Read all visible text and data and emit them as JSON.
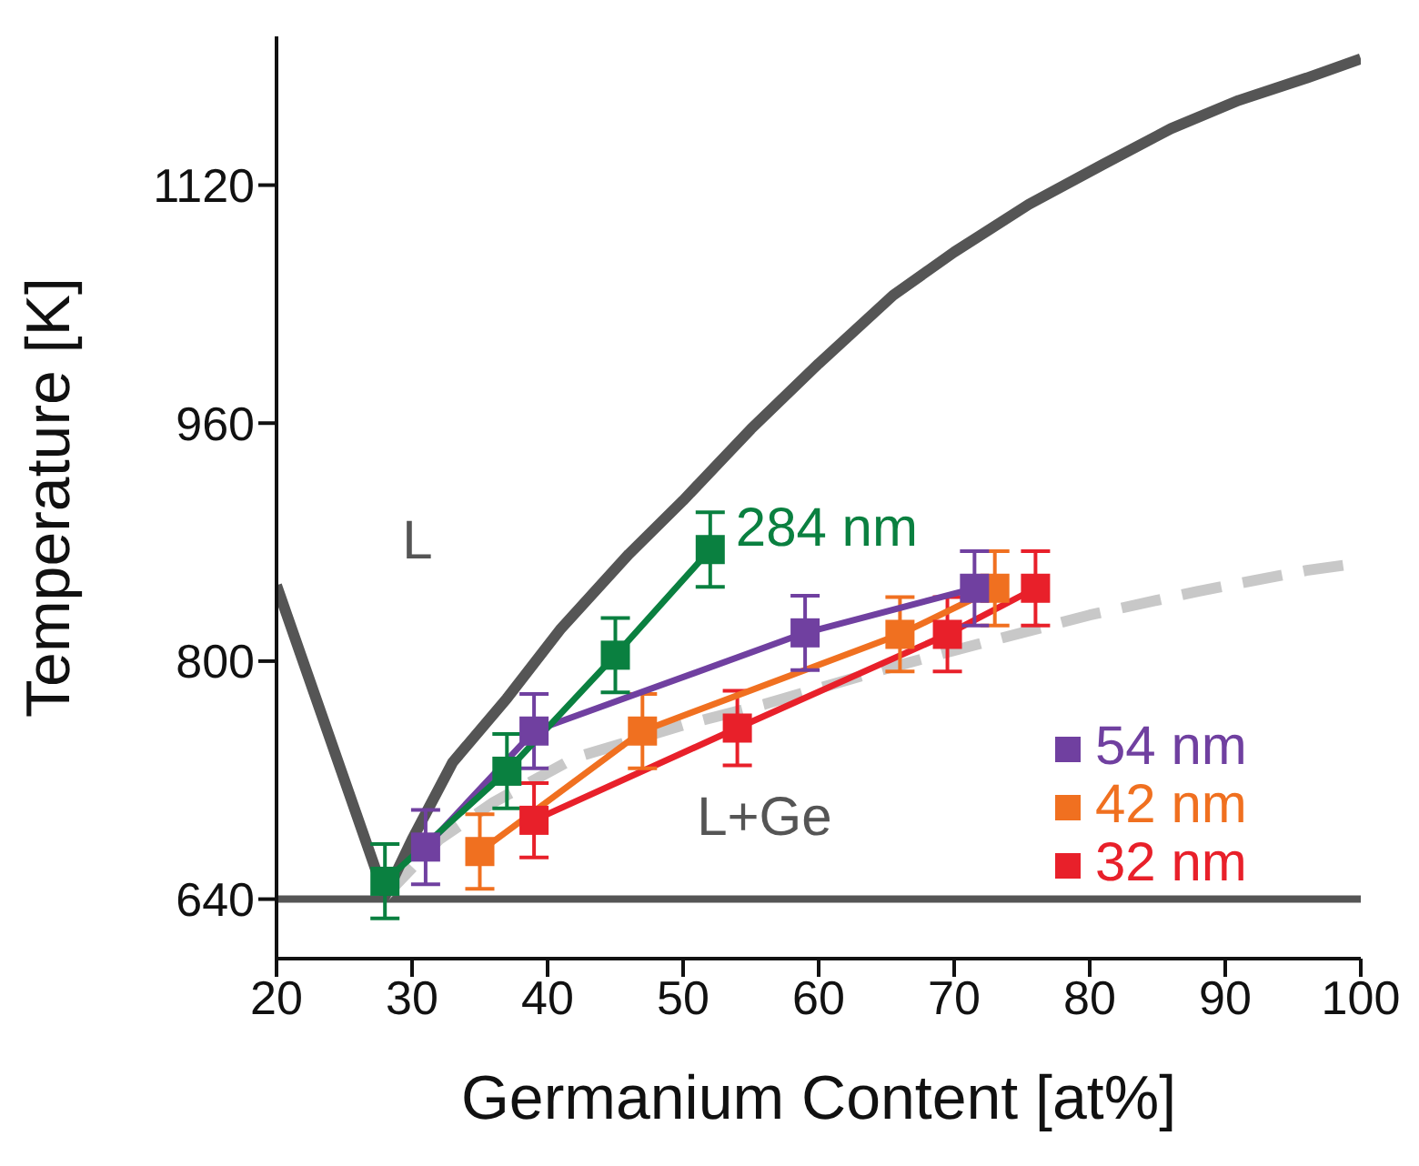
{
  "chart_data": {
    "type": "line",
    "xlabel": "Germanium Content [at%]",
    "ylabel": "Temperature [K]",
    "xlim": [
      20,
      100
    ],
    "ylim": [
      600,
      1220
    ],
    "xticks": [
      20,
      30,
      40,
      50,
      60,
      70,
      80,
      90,
      100
    ],
    "yticks": [
      640,
      800,
      960,
      1120
    ],
    "marker": "square",
    "legend": "bottom right",
    "ref_lines": [
      {
        "axis": "y",
        "value": 640,
        "color": "#555555"
      }
    ],
    "annotations": [
      "L",
      "L+Ge"
    ],
    "series": [
      {
        "name": "284 nm",
        "color": "#0a8040",
        "x": [
          28,
          37,
          45,
          52
        ],
        "values": [
          652,
          726,
          804,
          875
        ],
        "errors": [
          25,
          25,
          25,
          25
        ]
      },
      {
        "name": "54 nm",
        "color": "#7040a0",
        "x": [
          31,
          39,
          59,
          71.5
        ],
        "values": [
          675,
          753,
          819,
          849
        ],
        "errors": [
          25,
          25,
          25,
          25
        ]
      },
      {
        "name": "42 nm",
        "color": "#f07020",
        "x": [
          35,
          47,
          66,
          73
        ],
        "values": [
          672,
          753,
          818,
          849
        ],
        "errors": [
          25,
          25,
          25,
          25
        ]
      },
      {
        "name": "32 nm",
        "color": "#e8202a",
        "x": [
          39,
          54,
          69.5,
          76
        ],
        "values": [
          693,
          755,
          818,
          849
        ],
        "errors": [
          25,
          25,
          25,
          25
        ]
      },
      {
        "color": "#555555",
        "marker": "none",
        "x": [
          20,
          28,
          30,
          33,
          37,
          41,
          46,
          50,
          55,
          60,
          65.5,
          70,
          75.5,
          81,
          86,
          91,
          96,
          100
        ],
        "values": [
          851,
          642,
          680,
          732,
          775,
          822,
          872,
          908,
          956,
          1000,
          1046,
          1075,
          1107,
          1134,
          1158,
          1177,
          1192,
          1205
        ]
      },
      {
        "color": "#c8c8c8",
        "marker": "none",
        "line_style": "dashed",
        "x": [
          28,
          32,
          36,
          42,
          50,
          56,
          65,
          72,
          80,
          88,
          96,
          100
        ],
        "values": [
          642,
          680,
          705,
          735,
          757,
          771,
          795,
          812,
          831,
          847,
          861,
          866
        ]
      }
    ]
  }
}
